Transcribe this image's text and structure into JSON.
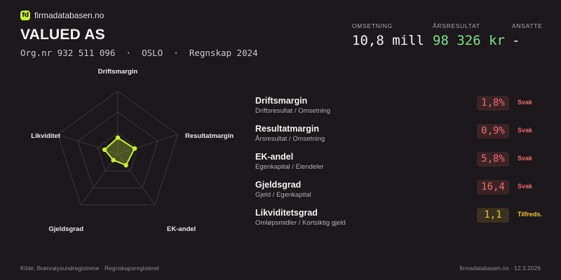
{
  "brand": {
    "logo_glyph": "fd",
    "name": "firmadatabasen.no",
    "accent": "#c6f135"
  },
  "company": {
    "name": "VALUED AS",
    "meta": "Org.nr 932 511 096  ·  OSLO  ·  Regnskap 2024"
  },
  "stats": [
    {
      "label": "OMSETNING",
      "value": "10,8 mill",
      "color": "#f2f0f1"
    },
    {
      "label": "ÅRSRESULTAT",
      "value": "98 326 kr",
      "color": "#7fe08a"
    },
    {
      "label": "ANSATTE",
      "value": "-",
      "color": "#f2f0f1"
    }
  ],
  "radar": {
    "axes": [
      "Driftsmargin",
      "Resultatmargin",
      "EK-andel",
      "Gjeldsgrad",
      "Likviditet"
    ],
    "rings": 3,
    "scores": [
      0.26,
      0.28,
      0.22,
      0.12,
      0.22
    ],
    "color": "#c6f135"
  },
  "metrics": [
    {
      "name": "Driftsmargin",
      "formula": "Driftsresultat / Omsetning",
      "value": "1,8%",
      "status": "Svak",
      "level": "weak"
    },
    {
      "name": "Resultatmargin",
      "formula": "Årsresultat / Omsetning",
      "value": "0,9%",
      "status": "Svak",
      "level": "weak"
    },
    {
      "name": "EK-andel",
      "formula": "Egenkapital / Eiendeler",
      "value": "5,8%",
      "status": "Svak",
      "level": "weak"
    },
    {
      "name": "Gjeldsgrad",
      "formula": "Gjeld / Egenkapital",
      "value": "16,4",
      "status": "Svak",
      "level": "weak"
    },
    {
      "name": "Likviditetsgrad",
      "formula": "Omløpsmidler / Kortsiktig gjeld",
      "value": "1,1",
      "status": "Tilfreds.",
      "level": "ok"
    }
  ],
  "footer": {
    "source": "Kilde: Brønnøysundregistrene · Regnskapsregisteret",
    "site_date": "firmadatabasen.no · 12.3.2026"
  }
}
